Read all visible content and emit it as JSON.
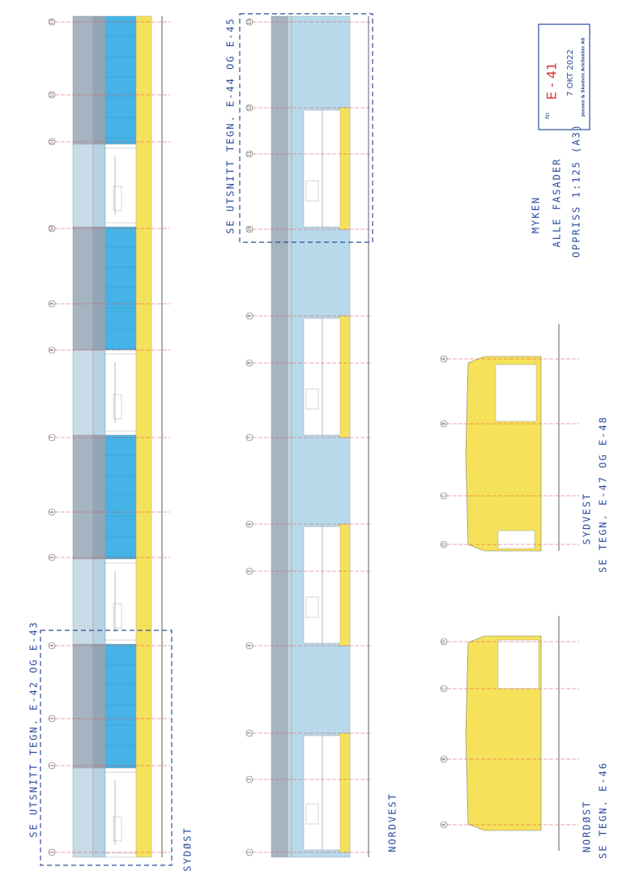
{
  "stamp": {
    "nr": "Nr.",
    "number": "E - 41",
    "date": "7 OKT 2022",
    "firm": "Jensen & Skodvin Arkitekter AS"
  },
  "title": [
    "MYKEN",
    "ALLE FASADER",
    "OPPRISS 1:125 (A3)"
  ],
  "elevations": [
    {
      "name": "SYDØST",
      "note": "SE UTSNITT TEGN. E-42 OG E-43",
      "grid": [
        "1",
        "2",
        "3",
        "4",
        "5",
        "6",
        "7",
        "8",
        "9",
        "10",
        "11",
        "12",
        "13"
      ]
    },
    {
      "name": "NORDVEST",
      "note": "SE UTSNITT TEGN. E-44 OG E-45",
      "grid": [
        "13",
        "12",
        "11",
        "10",
        "9",
        "8",
        "7",
        "6",
        "5",
        "4",
        "3",
        "2",
        "1"
      ]
    },
    {
      "name": "SYDVEST",
      "note": "SE TEGN. E-47 OG E-48",
      "grid": [
        "A",
        "B",
        "C",
        "D"
      ]
    },
    {
      "name": "NORDØST",
      "note": "SE TEGN. E-46",
      "grid": [
        "D",
        "C",
        "B",
        "A"
      ]
    }
  ]
}
